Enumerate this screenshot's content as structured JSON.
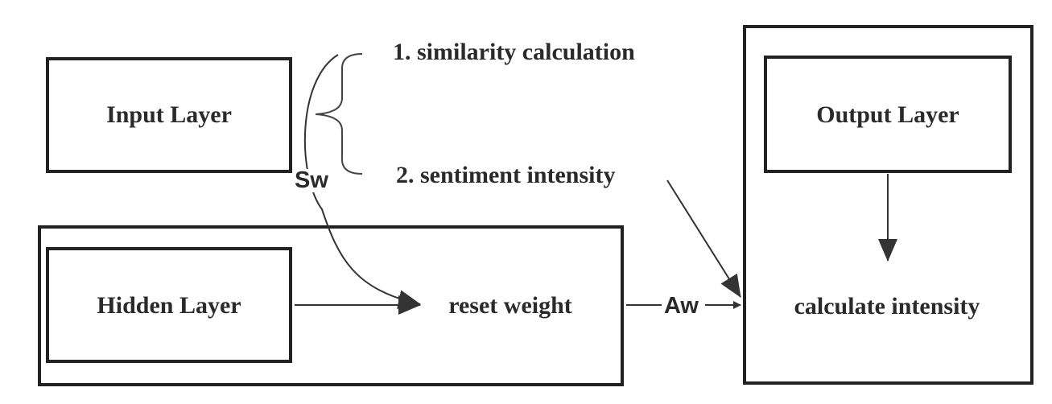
{
  "boxes": {
    "input_layer": "Input Layer",
    "hidden_layer": "Hidden Layer",
    "output_layer": "Output Layer"
  },
  "steps": {
    "step1": "1. similarity calculation",
    "step2": "2. sentiment intensity"
  },
  "nodes": {
    "reset_weight": "reset weight",
    "calculate_intensity": "calculate intensity"
  },
  "edges": {
    "sw": "Sw",
    "aw": "Aw"
  }
}
